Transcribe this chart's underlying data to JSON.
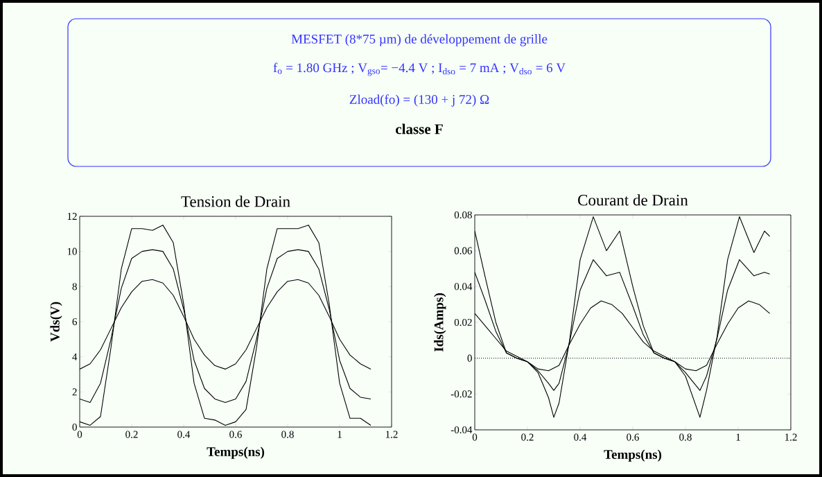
{
  "chart_data": [
    {
      "type": "other",
      "title": "MESFET (8*75 µm) de développement de grille",
      "subtitle": "classe F",
      "color": "#3333ff",
      "annotations": [
        "f$_{o}$ = 1.80 GHz ;   V$_{gso}$= −4.4 V ;  I$_{dso}$ = 7 mA  ;  V$_{dso}$ = 6 V",
        "Zload(fo) = (130 + j 72)   Ω"
      ]
    },
    {
      "type": "line",
      "title": "Tension de Drain",
      "xlabel": "Temps(ns)",
      "ylabel": "Vds(V)",
      "xlim": [
        0,
        1.2
      ],
      "ylim": [
        0,
        12
      ],
      "xticks": [
        0,
        0.2,
        0.4,
        0.6,
        0.8,
        1,
        1.2
      ],
      "yticks": [
        0,
        2,
        4,
        6,
        8,
        10,
        12
      ],
      "marker": "none",
      "line_style": "solid",
      "series": [
        {
          "color": "#000000",
          "x": [
            0,
            0.04,
            0.08,
            0.12,
            0.16,
            0.2,
            0.24,
            0.28,
            0.32,
            0.36,
            0.4,
            0.44,
            0.48,
            0.52,
            0.56,
            0.6,
            0.64,
            0.68,
            0.72,
            0.76,
            0.8,
            0.84,
            0.88,
            0.92,
            0.96,
            1.0,
            1.04,
            1.08,
            1.12
          ],
          "values": [
            3.3,
            3.6,
            4.4,
            5.6,
            6.8,
            7.7,
            8.3,
            8.4,
            8.2,
            7.5,
            6.3,
            5.0,
            4.1,
            3.5,
            3.3,
            3.6,
            4.4,
            5.6,
            6.8,
            7.7,
            8.3,
            8.4,
            8.2,
            7.5,
            6.3,
            5.0,
            4.1,
            3.6,
            3.3
          ]
        },
        {
          "color": "#000000",
          "x": [
            0,
            0.04,
            0.08,
            0.12,
            0.16,
            0.2,
            0.24,
            0.28,
            0.32,
            0.36,
            0.4,
            0.44,
            0.48,
            0.52,
            0.56,
            0.6,
            0.64,
            0.68,
            0.72,
            0.76,
            0.8,
            0.84,
            0.88,
            0.92,
            0.96,
            1.0,
            1.04,
            1.08,
            1.12
          ],
          "values": [
            1.6,
            1.4,
            2.5,
            5.0,
            7.9,
            9.6,
            10.0,
            10.1,
            10.0,
            9.0,
            6.7,
            3.8,
            2.2,
            1.6,
            1.4,
            1.6,
            2.6,
            5.0,
            7.9,
            9.6,
            10.0,
            10.1,
            10.0,
            9.0,
            6.7,
            3.8,
            2.2,
            1.7,
            1.6
          ]
        },
        {
          "color": "#000000",
          "x": [
            0,
            0.04,
            0.08,
            0.12,
            0.16,
            0.2,
            0.24,
            0.28,
            0.32,
            0.36,
            0.4,
            0.44,
            0.48,
            0.52,
            0.56,
            0.6,
            0.64,
            0.68,
            0.72,
            0.76,
            0.8,
            0.84,
            0.88,
            0.92,
            0.96,
            1.0,
            1.04,
            1.08,
            1.12
          ],
          "values": [
            0.3,
            0.1,
            0.6,
            4.5,
            9.0,
            11.3,
            11.3,
            11.2,
            11.5,
            10.5,
            7.0,
            2.5,
            0.5,
            0.4,
            0.1,
            0.3,
            1.0,
            4.5,
            9.0,
            11.3,
            11.3,
            11.3,
            11.5,
            10.5,
            7.0,
            2.5,
            0.5,
            0.5,
            0.1
          ]
        }
      ]
    },
    {
      "type": "line",
      "title": "Courant de Drain",
      "xlabel": "Temps(ns)",
      "ylabel": "Ids(Amps)",
      "xlim": [
        0,
        1.2
      ],
      "ylim": [
        -0.04,
        0.08
      ],
      "xticks": [
        0,
        0.2,
        0.4,
        0.6,
        0.8,
        1,
        1.2
      ],
      "yticks": [
        -0.04,
        -0.02,
        0,
        0.02,
        0.04,
        0.06,
        0.08
      ],
      "marker": "none",
      "line_style": "solid",
      "ref_lines": [
        {
          "axis": "y",
          "value": 0,
          "line_style": "dotted",
          "color": "#000000"
        }
      ],
      "series": [
        {
          "color": "#000000",
          "x": [
            0,
            0.04,
            0.08,
            0.12,
            0.16,
            0.2,
            0.24,
            0.28,
            0.32,
            0.36,
            0.4,
            0.44,
            0.48,
            0.52,
            0.56,
            0.6,
            0.64,
            0.68,
            0.72,
            0.76,
            0.8,
            0.84,
            0.88,
            0.92,
            0.96,
            1.0,
            1.04,
            1.08,
            1.12
          ],
          "values": [
            0.025,
            0.018,
            0.011,
            0.004,
            0.001,
            -0.002,
            -0.006,
            -0.007,
            -0.004,
            0.008,
            0.019,
            0.028,
            0.032,
            0.03,
            0.025,
            0.017,
            0.009,
            0.004,
            0.001,
            -0.002,
            -0.006,
            -0.007,
            -0.004,
            0.008,
            0.019,
            0.028,
            0.032,
            0.03,
            0.025
          ]
        },
        {
          "color": "#000000",
          "x": [
            0,
            0.04,
            0.08,
            0.12,
            0.16,
            0.2,
            0.24,
            0.28,
            0.3,
            0.32,
            0.36,
            0.4,
            0.45,
            0.5,
            0.55,
            0.6,
            0.64,
            0.68,
            0.72,
            0.76,
            0.8,
            0.855,
            0.88,
            0.92,
            0.96,
            1.005,
            1.06,
            1.1,
            1.12
          ],
          "values": [
            0.048,
            0.032,
            0.015,
            0.003,
            0.0,
            -0.002,
            -0.007,
            -0.014,
            -0.018,
            -0.014,
            0.009,
            0.038,
            0.055,
            0.046,
            0.048,
            0.029,
            0.013,
            0.003,
            0.0,
            -0.002,
            -0.008,
            -0.018,
            -0.01,
            0.011,
            0.038,
            0.055,
            0.046,
            0.048,
            0.047
          ]
        },
        {
          "color": "#000000",
          "x": [
            0,
            0.04,
            0.08,
            0.12,
            0.16,
            0.2,
            0.24,
            0.28,
            0.3,
            0.32,
            0.36,
            0.4,
            0.45,
            0.5,
            0.55,
            0.6,
            0.64,
            0.68,
            0.72,
            0.76,
            0.8,
            0.855,
            0.88,
            0.92,
            0.96,
            1.005,
            1.06,
            1.1,
            1.12
          ],
          "values": [
            0.071,
            0.045,
            0.02,
            0.003,
            0.0,
            -0.002,
            -0.008,
            -0.022,
            -0.033,
            -0.025,
            0.01,
            0.055,
            0.079,
            0.06,
            0.071,
            0.04,
            0.018,
            0.003,
            0.0,
            -0.002,
            -0.01,
            -0.033,
            -0.018,
            0.012,
            0.055,
            0.079,
            0.059,
            0.071,
            0.068
          ]
        }
      ]
    }
  ]
}
